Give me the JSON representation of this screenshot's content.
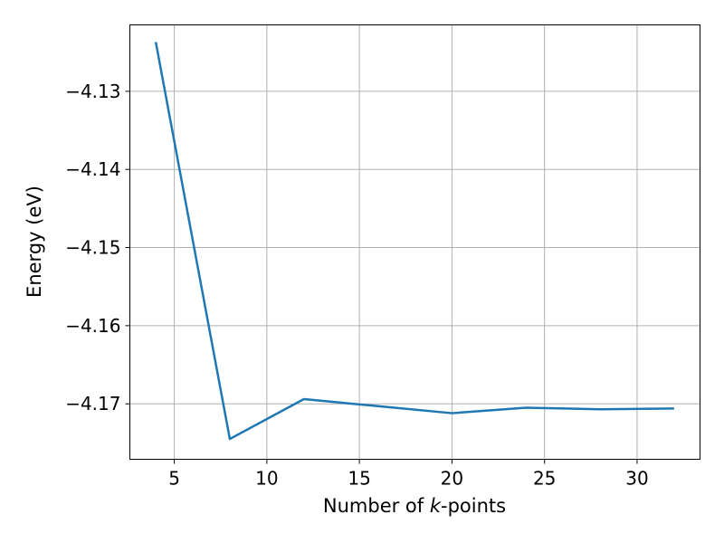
{
  "chart_data": {
    "type": "line",
    "title": "",
    "xlabel_prefix": "Number of ",
    "xlabel_italic": "k",
    "xlabel_suffix": "-points",
    "ylabel": "Energy (eV)",
    "x": [
      4,
      8,
      12,
      16,
      20,
      24,
      28,
      32
    ],
    "series": [
      {
        "values": [
          -4.1237,
          -4.1745,
          -4.1694,
          -4.1703,
          -4.1712,
          -4.1705,
          -4.1707,
          -4.1706
        ],
        "color": "#1f77b4"
      }
    ],
    "xlim": [
      2.6,
      33.4
    ],
    "ylim": [
      -4.1771,
      -4.1215
    ],
    "xticks": [
      5,
      10,
      15,
      20,
      25,
      30
    ],
    "xtick_labels": [
      "5",
      "10",
      "15",
      "20",
      "25",
      "30"
    ],
    "yticks": [
      -4.13,
      -4.14,
      -4.15,
      -4.16,
      -4.17
    ],
    "ytick_labels": [
      "−4.13",
      "−4.14",
      "−4.15",
      "−4.16",
      "−4.17"
    ],
    "grid": true,
    "legend": "none"
  }
}
